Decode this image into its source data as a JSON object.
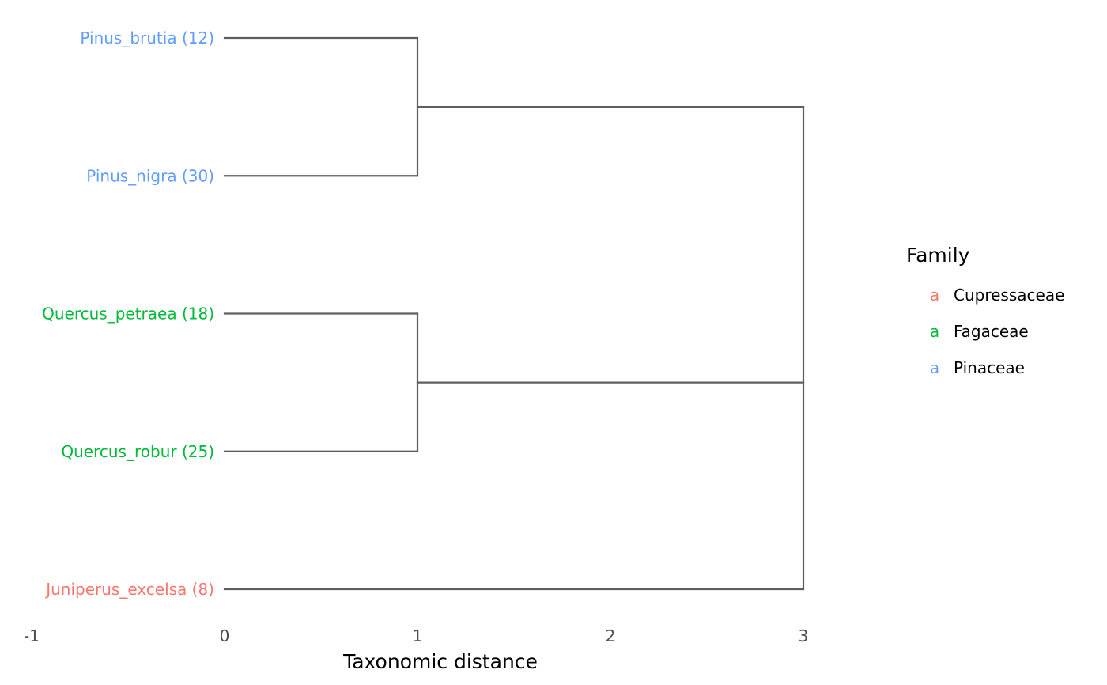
{
  "chart_data": {
    "type": "dendrogram",
    "xlabel": "Taxonomic distance",
    "xlim": [
      -1,
      3
    ],
    "x_ticks": [
      "-1",
      "0",
      "1",
      "2",
      "3"
    ],
    "leaves": [
      {
        "label": "Pinus_brutia (12)",
        "family": "Pinaceae"
      },
      {
        "label": "Pinus_nigra (30)",
        "family": "Pinaceae"
      },
      {
        "label": "Quercus_petraea (18)",
        "family": "Fagaceae"
      },
      {
        "label": "Quercus_robur (25)",
        "family": "Fagaceae"
      },
      {
        "label": "Juniperus_excelsa (8)",
        "family": "Cupressaceae"
      }
    ],
    "merges": [
      {
        "left": "Pinus_brutia (12)",
        "right": "Pinus_nigra (30)",
        "height": 1
      },
      {
        "left": "Quercus_petraea (18)",
        "right": "Quercus_robur (25)",
        "height": 1
      },
      {
        "left": "Pinus clade",
        "right": "Quercus clade",
        "height": 3
      },
      {
        "left": "Pinus+Quercus clade",
        "right": "Juniperus_excelsa (8)",
        "height": 3
      }
    ],
    "legend": {
      "title": "Family",
      "key_glyph": "a",
      "placement": "right",
      "items": [
        {
          "label": "Cupressaceae",
          "color": "#F8766D"
        },
        {
          "label": "Fagaceae",
          "color": "#00BA38"
        },
        {
          "label": "Pinaceae",
          "color": "#619CFF"
        }
      ]
    },
    "branch_color": "#5f5f5f",
    "grid": false
  }
}
